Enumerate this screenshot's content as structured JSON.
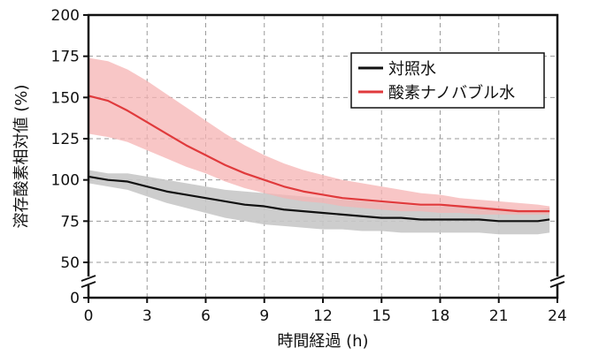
{
  "chart_data": {
    "type": "line",
    "xlabel": "時間経過 (h)",
    "ylabel": "溶存酸素相対値 (%)",
    "xlim": [
      0,
      24
    ],
    "ylim": [
      0,
      200
    ],
    "axis_break": true,
    "grid": true,
    "legend_position": "top-right",
    "x_ticks": [
      0,
      3,
      6,
      9,
      12,
      15,
      18,
      21,
      24
    ],
    "x_tick_labels": [
      "0",
      "3",
      "6",
      "9",
      "12",
      "15",
      "18",
      "21",
      "24"
    ],
    "y_ticks": [
      0,
      50,
      75,
      100,
      125,
      150,
      175,
      200
    ],
    "y_tick_labels": [
      "0",
      "50",
      "75",
      "100",
      "125",
      "150",
      "175",
      "200"
    ],
    "series": [
      {
        "name": "対照水",
        "color": "#111111",
        "band_color": "#c8c8c8",
        "x": [
          0,
          1,
          2,
          3,
          4,
          5,
          6,
          7,
          8,
          9,
          10,
          11,
          12,
          13,
          14,
          15,
          16,
          17,
          18,
          19,
          20,
          21,
          22,
          23,
          23.6
        ],
        "values": [
          102,
          100,
          99,
          96,
          93,
          91,
          89,
          87,
          85,
          84,
          82,
          81,
          80,
          79,
          78,
          77,
          77,
          76,
          76,
          76,
          76,
          75,
          75,
          75,
          76
        ],
        "lower": [
          98,
          96,
          94,
          90,
          86,
          83,
          80,
          77,
          75,
          73,
          72,
          71,
          70,
          70,
          69,
          69,
          68,
          68,
          68,
          68,
          68,
          67,
          67,
          67,
          68
        ],
        "upper": [
          106,
          104,
          104,
          102,
          100,
          98,
          96,
          94,
          93,
          92,
          91,
          90,
          89,
          88,
          87,
          86,
          85,
          84,
          84,
          84,
          84,
          83,
          82,
          82,
          83
        ]
      },
      {
        "name": "酸素ナノバブル水",
        "color": "#e03a3c",
        "band_color": "#f6b3b3",
        "x": [
          0,
          1,
          2,
          3,
          4,
          5,
          6,
          7,
          8,
          9,
          10,
          11,
          12,
          13,
          14,
          15,
          16,
          17,
          18,
          19,
          20,
          21,
          22,
          23,
          23.6
        ],
        "values": [
          151,
          148,
          142,
          135,
          128,
          121,
          115,
          109,
          104,
          100,
          96,
          93,
          91,
          89,
          88,
          87,
          86,
          85,
          85,
          84,
          83,
          82,
          81,
          81,
          81
        ],
        "lower": [
          128,
          126,
          123,
          118,
          113,
          108,
          104,
          99,
          95,
          92,
          89,
          87,
          86,
          84,
          83,
          82,
          81,
          81,
          80,
          80,
          79,
          79,
          79,
          79,
          79
        ],
        "upper": [
          174,
          172,
          167,
          160,
          152,
          144,
          136,
          128,
          121,
          115,
          110,
          106,
          103,
          100,
          98,
          96,
          94,
          92,
          91,
          89,
          88,
          87,
          86,
          85,
          84
        ]
      }
    ]
  }
}
